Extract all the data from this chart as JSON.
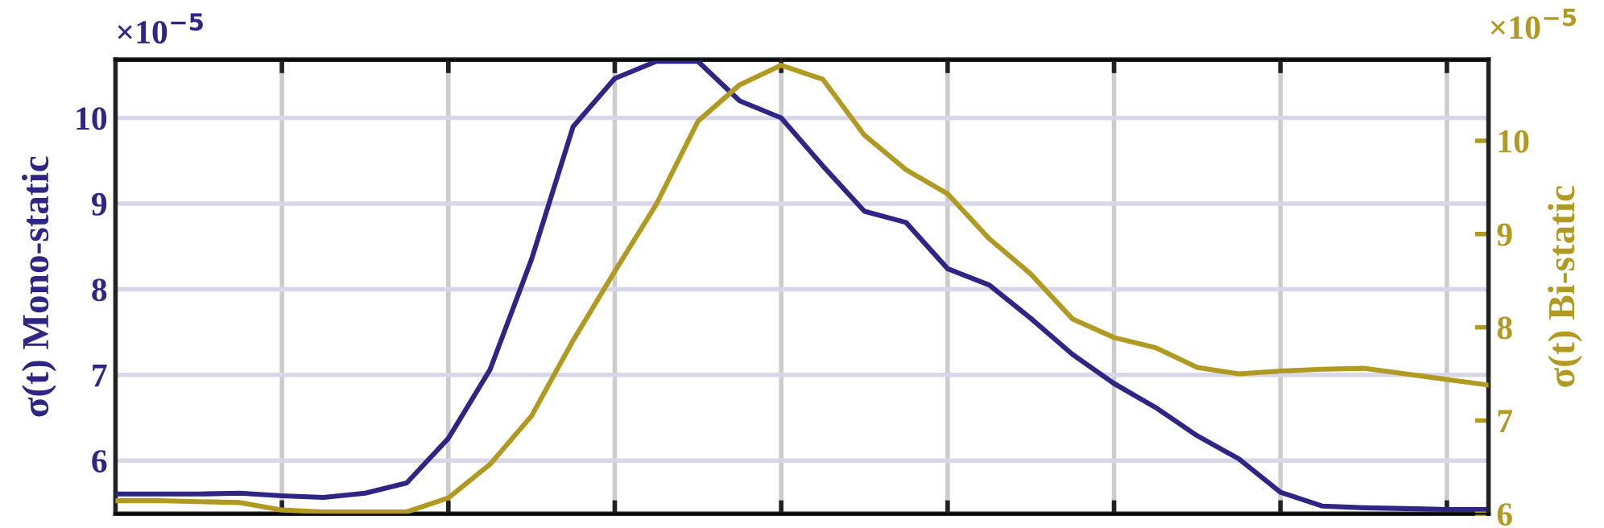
{
  "chart_data": {
    "type": "line",
    "ylabel": "σ(t) Mono-static",
    "y2label": "σ(t) Bi-static",
    "annotations": [
      "×10$^{−5}$",
      "×10$^{−5}$"
    ],
    "categories": [
      null,
      null,
      null,
      null,
      null,
      null,
      null,
      null,
      null,
      null,
      null,
      null,
      null,
      null,
      null,
      null,
      null,
      null,
      null,
      null,
      null,
      null,
      null,
      null,
      null,
      null,
      null,
      null,
      null,
      null,
      null,
      null,
      null,
      null
    ],
    "ylim": [
      5.38,
      10.68
    ],
    "yticks": [
      6,
      7,
      8,
      9,
      10
    ],
    "y2lim": [
      6,
      10.87
    ],
    "y2ticks": [
      6,
      7,
      8,
      9,
      10
    ],
    "tick_labels": "y",
    "grid": true,
    "line_style": "solid",
    "marker": "none",
    "series": [
      {
        "color": "#2e2585",
        "values": [
          5.61,
          5.61,
          5.61,
          5.62,
          5.59,
          5.57,
          5.62,
          5.74,
          6.26,
          7.06,
          8.35,
          9.9,
          10.46,
          10.66,
          10.66,
          10.2,
          10.0,
          9.44,
          8.91,
          8.78,
          8.24,
          8.05,
          7.66,
          7.24,
          6.9,
          6.62,
          6.29,
          6.02,
          5.63,
          5.47,
          5.45,
          5.44,
          5.43,
          5.43
        ]
      },
      {
        "color": "#b09a22",
        "axis": "y2",
        "values": [
          6.14,
          6.14,
          6.13,
          6.12,
          6.04,
          6.02,
          6.02,
          6.02,
          6.17,
          6.53,
          7.05,
          7.86,
          8.6,
          9.32,
          10.21,
          10.6,
          10.81,
          10.66,
          10.06,
          9.69,
          9.43,
          8.95,
          8.57,
          8.09,
          7.89,
          7.78,
          7.57,
          7.5,
          7.53,
          7.55,
          7.56,
          7.5,
          7.44,
          7.38
        ]
      }
    ]
  }
}
